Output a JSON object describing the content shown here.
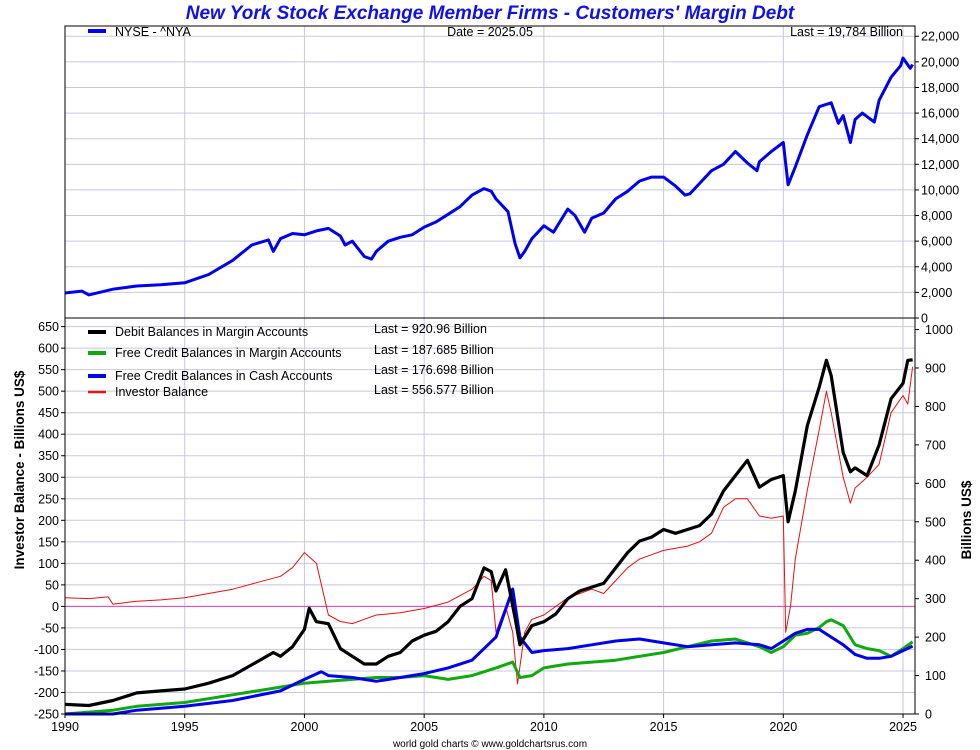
{
  "header": {
    "title": "New York Stock Exchange Member Firms - Customers' Margin Debt",
    "footer": "world gold charts © www.goldchartsrus.com"
  },
  "chart_data": [
    {
      "type": "line",
      "panel": "top",
      "legend": [
        {
          "name": "NYSE - ^NYA",
          "color": "#0000ee"
        }
      ],
      "date_label": "Date = 2025.05",
      "last_label": "Last = 19,784 Billion",
      "xlim": [
        1990,
        2025.5
      ],
      "x_ticks": [
        1990,
        1995,
        2000,
        2005,
        2010,
        2015,
        2020,
        2025
      ],
      "ylim": [
        0,
        22800
      ],
      "y_ticks": [
        "0",
        "2,000",
        "4,000",
        "6,000",
        "8,000",
        "10,000",
        "12,000",
        "14,000",
        "16,000",
        "18,000",
        "20,000",
        "22,000"
      ],
      "y_tick_values": [
        0,
        2000,
        4000,
        6000,
        8000,
        10000,
        12000,
        14000,
        16000,
        18000,
        20000,
        22000
      ],
      "series": [
        {
          "name": "NYSE - ^NYA",
          "color": "#0000ee",
          "x": [
            1990,
            1990.7,
            1991,
            1992,
            1993,
            1994,
            1995,
            1996,
            1997,
            1997.8,
            1998.5,
            1998.7,
            1999,
            1999.5,
            2000,
            2000.5,
            2001,
            2001.5,
            2001.7,
            2002,
            2002.5,
            2002.8,
            2003,
            2003.5,
            2004,
            2004.5,
            2005,
            2005.5,
            2006,
            2006.5,
            2007,
            2007.5,
            2007.8,
            2008,
            2008.5,
            2008.8,
            2009,
            2009.2,
            2009.5,
            2010,
            2010.4,
            2010.6,
            2011,
            2011.3,
            2011.7,
            2012,
            2012.5,
            2013,
            2013.5,
            2014,
            2014.5,
            2015,
            2015.5,
            2015.9,
            2016.1,
            2016.5,
            2017,
            2017.5,
            2018,
            2018.5,
            2018.9,
            2019,
            2019.5,
            2020,
            2020.2,
            2020.5,
            2021,
            2021.5,
            2022,
            2022.3,
            2022.5,
            2022.8,
            2023,
            2023.3,
            2023.8,
            2024,
            2024.5,
            2024.9,
            2025,
            2025.3,
            2025.4
          ],
          "values": [
            1950,
            2100,
            1800,
            2250,
            2500,
            2600,
            2750,
            3400,
            4500,
            5700,
            6100,
            5200,
            6200,
            6600,
            6500,
            6800,
            7000,
            6400,
            5700,
            6000,
            4800,
            4600,
            5200,
            6000,
            6300,
            6500,
            7100,
            7500,
            8100,
            8700,
            9600,
            10100,
            9900,
            9300,
            8300,
            5800,
            4700,
            5200,
            6200,
            7200,
            6700,
            7300,
            8500,
            8000,
            6700,
            7800,
            8200,
            9300,
            9900,
            10700,
            11000,
            11000,
            10300,
            9600,
            9700,
            10500,
            11500,
            12000,
            13000,
            12100,
            11500,
            12200,
            13000,
            13700,
            10400,
            11800,
            14300,
            16500,
            16800,
            15200,
            15800,
            13700,
            15500,
            16000,
            15300,
            17000,
            18800,
            19700,
            20300,
            19500,
            19784
          ]
        }
      ]
    },
    {
      "type": "line",
      "panel": "bottom",
      "xlim": [
        1990,
        2025.5
      ],
      "x_ticks": [
        1990,
        1995,
        2000,
        2005,
        2010,
        2015,
        2020,
        2025
      ],
      "ylabel": "Investor Balance - Billions US$",
      "ylim": [
        -250,
        670
      ],
      "y_ticks": [
        -250,
        -200,
        -150,
        -100,
        -50,
        0,
        50,
        100,
        150,
        200,
        250,
        300,
        350,
        400,
        450,
        500,
        550,
        600,
        650
      ],
      "y2label": "Billions US$",
      "y2lim": [
        0,
        1030
      ],
      "y2_ticks": [
        0,
        100,
        200,
        300,
        400,
        500,
        600,
        700,
        800,
        900,
        1000
      ],
      "series": [
        {
          "name": "Debit Balances in Margin Accounts",
          "last": "Last = 920.96 Billion",
          "color": "#000000",
          "axis": "right",
          "x": [
            1990,
            1991,
            1992,
            1993,
            1994,
            1995,
            1996,
            1997,
            1998,
            1998.7,
            1999,
            1999.5,
            2000,
            2000.2,
            2000.5,
            2001,
            2001.5,
            2002,
            2002.5,
            2003,
            2003.5,
            2004,
            2004.5,
            2005,
            2005.5,
            2006,
            2006.5,
            2007,
            2007.5,
            2007.8,
            2008,
            2008.4,
            2008.8,
            2009,
            2009.2,
            2009.5,
            2010,
            2010.5,
            2011,
            2011.5,
            2012,
            2012.5,
            2013,
            2013.5,
            2014,
            2014.5,
            2015,
            2015.5,
            2016,
            2016.5,
            2017,
            2017.5,
            2018,
            2018.5,
            2019,
            2019.5,
            2020,
            2020.2,
            2020.5,
            2021,
            2021.5,
            2021.8,
            2022,
            2022.5,
            2022.8,
            2023,
            2023.5,
            2024,
            2024.5,
            2025,
            2025.2,
            2025.4
          ],
          "values": [
            25,
            22,
            35,
            55,
            60,
            65,
            80,
            100,
            135,
            160,
            150,
            175,
            220,
            275,
            240,
            235,
            170,
            150,
            130,
            130,
            150,
            160,
            190,
            205,
            215,
            240,
            280,
            300,
            380,
            370,
            320,
            375,
            250,
            180,
            200,
            230,
            240,
            260,
            300,
            320,
            330,
            340,
            380,
            420,
            450,
            460,
            480,
            470,
            480,
            490,
            520,
            580,
            620,
            660,
            590,
            610,
            620,
            500,
            580,
            750,
            850,
            920,
            880,
            680,
            630,
            640,
            620,
            700,
            820,
            860,
            920,
            920.96
          ]
        },
        {
          "name": "Free Credit Balances in Margin Accounts",
          "last": "Last = 187.685 Billion",
          "color": "#10aa10",
          "axis": "right",
          "x": [
            1990,
            1992,
            1993,
            1995,
            1997,
            1999,
            2000,
            2001,
            2002,
            2003,
            2004,
            2005,
            2006,
            2007,
            2008,
            2008.7,
            2009,
            2009.5,
            2010,
            2011,
            2012,
            2013,
            2014,
            2015,
            2016,
            2017,
            2018,
            2019,
            2019.5,
            2020,
            2020.5,
            2021,
            2021.5,
            2021.8,
            2022,
            2022.5,
            2023,
            2023.5,
            2024,
            2024.5,
            2025,
            2025.4
          ],
          "values": [
            0,
            10,
            20,
            30,
            50,
            70,
            80,
            85,
            90,
            95,
            95,
            100,
            90,
            100,
            120,
            135,
            95,
            100,
            120,
            130,
            135,
            140,
            150,
            160,
            175,
            190,
            195,
            175,
            160,
            175,
            205,
            210,
            225,
            240,
            245,
            230,
            180,
            170,
            165,
            150,
            170,
            187.685
          ]
        },
        {
          "name": "Free Credit Balances in Cash Accounts",
          "last": "Last = 176.698 Billion",
          "color": "#0000ee",
          "axis": "right",
          "x": [
            1990,
            1992,
            1993,
            1995,
            1997,
            1999,
            2000,
            2000.7,
            2001,
            2002,
            2003,
            2004,
            2005,
            2006,
            2007,
            2008,
            2008.7,
            2009,
            2009.5,
            2010,
            2011,
            2012,
            2013,
            2014,
            2015,
            2016,
            2017,
            2018,
            2019,
            2019.5,
            2020,
            2020.5,
            2021,
            2021.5,
            2022,
            2022.5,
            2023,
            2023.5,
            2024,
            2024.5,
            2025,
            2025.4
          ],
          "values": [
            0,
            0,
            10,
            20,
            35,
            60,
            90,
            110,
            100,
            95,
            85,
            95,
            105,
            120,
            140,
            200,
            325,
            200,
            160,
            165,
            170,
            180,
            190,
            195,
            185,
            175,
            180,
            185,
            180,
            170,
            190,
            210,
            220,
            220,
            200,
            180,
            155,
            145,
            145,
            150,
            165,
            176.698
          ]
        },
        {
          "name": "Investor Balance",
          "last": "Last = 556.577 Billion",
          "color": "#e81010",
          "axis": "left",
          "x": [
            1990,
            1991,
            1991.8,
            1992,
            1993,
            1994,
            1995,
            1996,
            1997,
            1998,
            1999,
            1999.5,
            2000,
            2000.5,
            2001,
            2001.5,
            2002,
            2002.5,
            2003,
            2004,
            2005,
            2006,
            2006.5,
            2007,
            2007.5,
            2007.8,
            2008,
            2008.4,
            2008.7,
            2008.9,
            2009.2,
            2009.5,
            2010,
            2010.5,
            2011,
            2011.5,
            2012,
            2012.5,
            2013,
            2013.5,
            2014,
            2014.5,
            2015,
            2015.5,
            2016,
            2016.5,
            2017,
            2017.5,
            2018,
            2018.5,
            2019,
            2019.5,
            2020,
            2020.1,
            2020.3,
            2020.5,
            2021,
            2021.5,
            2021.8,
            2022,
            2022.5,
            2022.8,
            2023,
            2023.5,
            2024,
            2024.5,
            2025,
            2025.2,
            2025.4
          ],
          "values": [
            20,
            18,
            22,
            5,
            12,
            15,
            20,
            30,
            40,
            55,
            70,
            90,
            125,
            100,
            -20,
            -35,
            -40,
            -30,
            -20,
            -15,
            -5,
            10,
            25,
            40,
            70,
            60,
            -60,
            0,
            -60,
            -180,
            -60,
            -30,
            -20,
            0,
            20,
            30,
            40,
            30,
            60,
            90,
            110,
            120,
            130,
            135,
            140,
            150,
            170,
            230,
            250,
            250,
            210,
            205,
            210,
            -60,
            0,
            110,
            270,
            410,
            500,
            450,
            300,
            240,
            275,
            300,
            330,
            450,
            490,
            470,
            556.577
          ]
        }
      ]
    }
  ]
}
